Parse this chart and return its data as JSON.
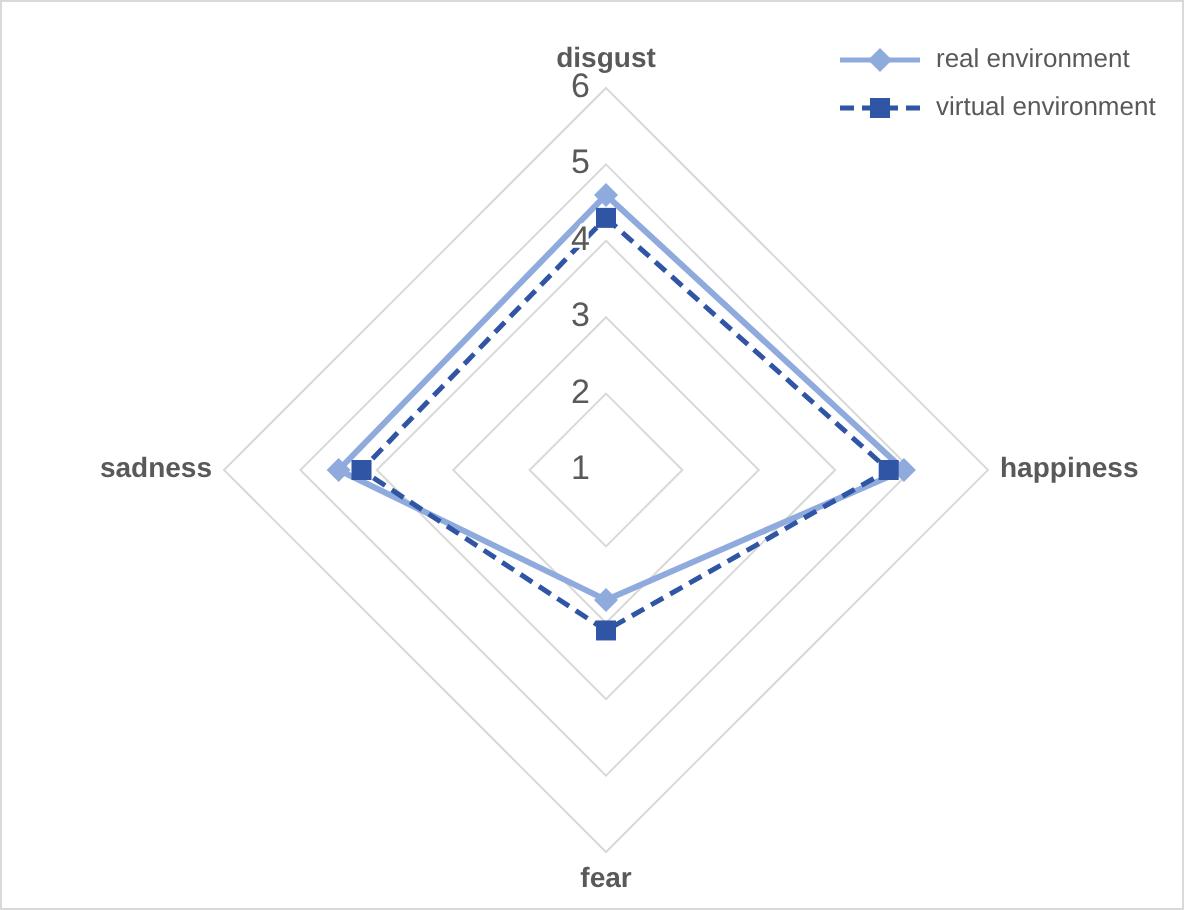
{
  "chart_data": {
    "type": "radar",
    "categories": [
      "disgust",
      "happiness",
      "fear",
      "sadness"
    ],
    "series": [
      {
        "name": "real environment",
        "color": "#8faadc",
        "values": [
          4.6,
          4.9,
          2.7,
          4.5
        ],
        "marker": "diamond",
        "line_style": "solid"
      },
      {
        "name": "virtual environment",
        "color": "#2f55a4",
        "values": [
          4.3,
          4.7,
          3.1,
          4.2
        ],
        "marker": "square",
        "line_style": "dashed"
      }
    ],
    "ylim": [
      1,
      6
    ],
    "yticks": [
      1,
      2,
      3,
      4,
      5,
      6
    ],
    "grid": true,
    "legend": "top right"
  }
}
